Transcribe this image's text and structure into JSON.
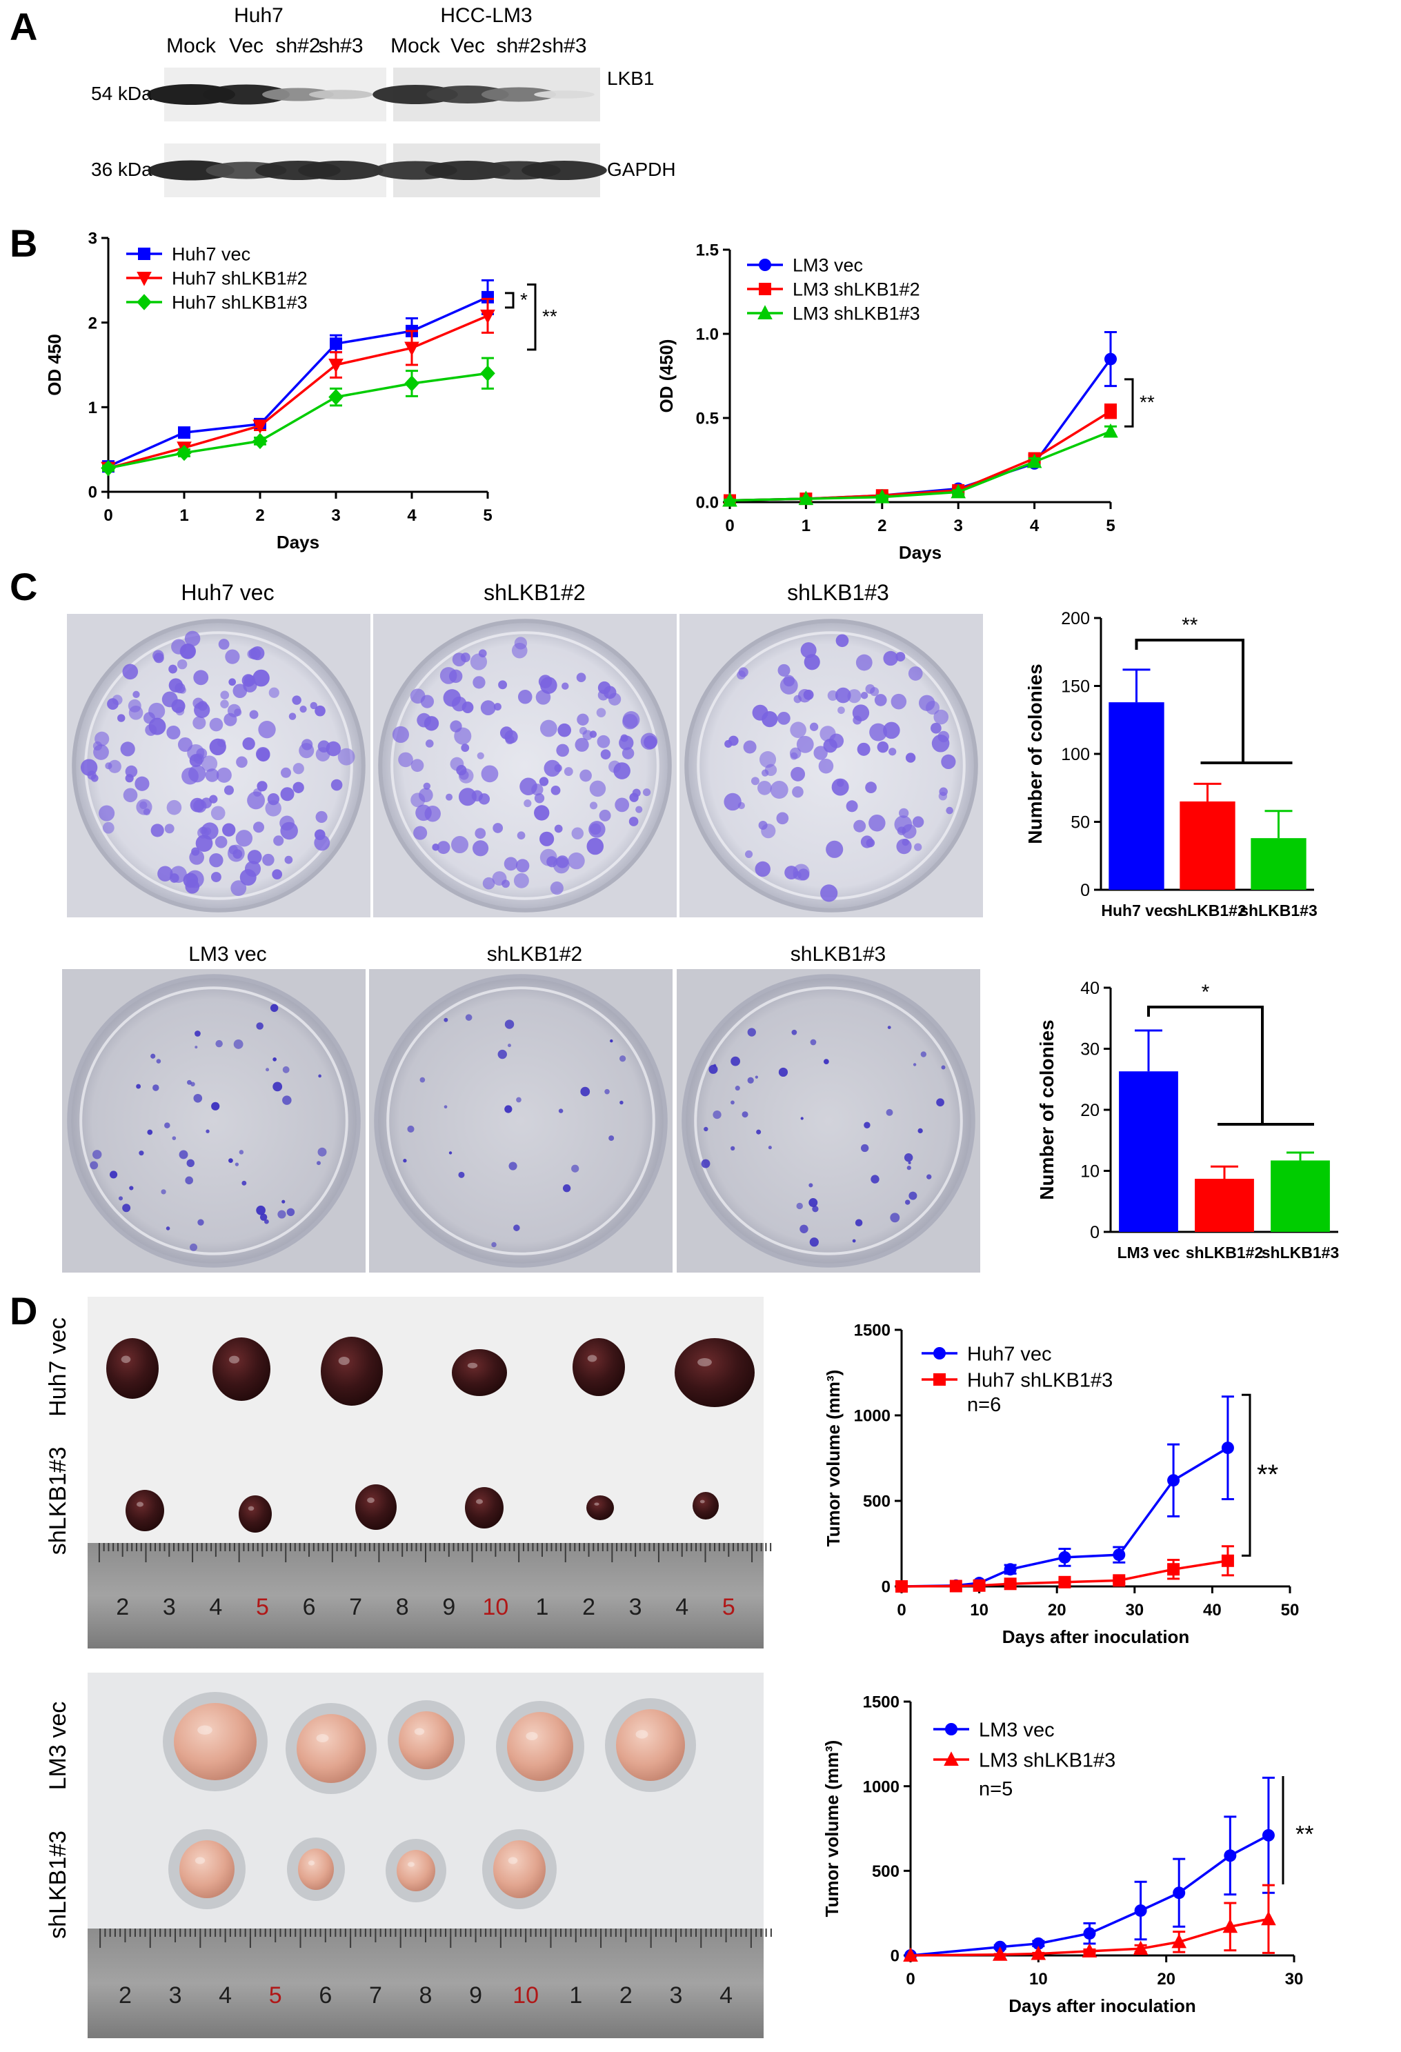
{
  "panels": {
    "a": {
      "letter": "A",
      "group1": "Huh7",
      "group2": "HCC-LM3",
      "lanes": [
        "Mock",
        "Vec",
        "sh#2",
        "sh#3",
        "Mock",
        "Vec",
        "sh#2",
        "sh#3"
      ],
      "markers": [
        {
          "size": "54 kDa",
          "protein": "LKB1",
          "intensity": [
            1.0,
            0.95,
            0.45,
            0.18,
            0.9,
            0.8,
            0.55,
            0.08
          ]
        },
        {
          "size": "36 kDa",
          "protein": "GAPDH",
          "intensity": [
            0.95,
            0.75,
            0.9,
            0.9,
            0.85,
            0.9,
            0.85,
            0.9
          ]
        }
      ]
    },
    "b": {
      "letter": "B"
    },
    "c": {
      "letter": "C",
      "row1_titles": [
        "Huh7 vec",
        "shLKB1#2",
        "shLKB1#3"
      ],
      "row2_titles": [
        "LM3 vec",
        "shLKB1#2",
        "shLKB1#3"
      ]
    },
    "d": {
      "letter": "D",
      "photo1_labels": [
        "Huh7 vec",
        "shLKB1#3"
      ],
      "photo2_labels": [
        "LM3 vec",
        "shLKB1#3"
      ],
      "ruler_numbers": [
        "2",
        "3",
        "4",
        "5",
        "6",
        "7",
        "8",
        "9",
        "10",
        "1",
        "2",
        "3",
        "4",
        "5"
      ],
      "ruler_numbers2": [
        "2",
        "3",
        "4",
        "5",
        "6",
        "7",
        "8",
        "9",
        "10",
        "1",
        "2",
        "3",
        "4"
      ]
    }
  },
  "chart_data": [
    {
      "id": "b-left",
      "type": "line",
      "xlabel": "Days",
      "ylabel": "OD 450",
      "xlim": [
        0,
        5
      ],
      "ylim": [
        0,
        3
      ],
      "xticks": [
        0,
        1,
        2,
        3,
        4,
        5
      ],
      "yticks": [
        0,
        1,
        2,
        3
      ],
      "x": [
        0,
        1,
        2,
        3,
        4,
        5
      ],
      "series": [
        {
          "name": "Huh7 vec",
          "color": "#0000ff",
          "marker": "square",
          "values": [
            0.3,
            0.7,
            0.8,
            1.75,
            1.9,
            2.3
          ],
          "err": [
            0.03,
            0.05,
            0.05,
            0.1,
            0.15,
            0.2
          ]
        },
        {
          "name": "Huh7 shLKB1#2",
          "color": "#ff0000",
          "marker": "triangle-down",
          "values": [
            0.28,
            0.52,
            0.78,
            1.5,
            1.7,
            2.08
          ],
          "err": [
            0.03,
            0.05,
            0.05,
            0.15,
            0.2,
            0.2
          ]
        },
        {
          "name": "Huh7 shLKB1#3",
          "color": "#00cc00",
          "marker": "diamond",
          "values": [
            0.28,
            0.46,
            0.6,
            1.12,
            1.28,
            1.4
          ],
          "err": [
            0.03,
            0.04,
            0.04,
            0.1,
            0.15,
            0.18
          ]
        }
      ],
      "annotations": [
        {
          "text": "*",
          "between": [
            "Huh7 vec",
            "Huh7 shLKB1#2"
          ],
          "at_x": 5
        },
        {
          "text": "**",
          "between": [
            "Huh7 vec",
            "Huh7 shLKB1#3"
          ],
          "at_x": 5
        }
      ]
    },
    {
      "id": "b-right",
      "type": "line",
      "xlabel": "Days",
      "ylabel": "OD (450)",
      "xlim": [
        0,
        5
      ],
      "ylim": [
        0,
        1.5
      ],
      "xticks": [
        0,
        1,
        2,
        3,
        4,
        5
      ],
      "yticks": [
        0.0,
        0.5,
        1.0,
        1.5
      ],
      "ytick_labels": [
        "0.0",
        "0.5",
        "1.0",
        "1.5"
      ],
      "x": [
        0,
        1,
        2,
        3,
        4,
        5
      ],
      "series": [
        {
          "name": "LM3 vec",
          "color": "#0000ff",
          "marker": "circle",
          "values": [
            0.01,
            0.02,
            0.04,
            0.08,
            0.23,
            0.85
          ],
          "err": [
            0.005,
            0.005,
            0.01,
            0.01,
            0.02,
            0.16
          ]
        },
        {
          "name": "LM3 shLKB1#2",
          "color": "#ff0000",
          "marker": "square",
          "values": [
            0.01,
            0.02,
            0.04,
            0.07,
            0.26,
            0.54
          ],
          "err": [
            0.005,
            0.005,
            0.01,
            0.01,
            0.02,
            0.04
          ]
        },
        {
          "name": "LM3 shLKB1#3",
          "color": "#00cc00",
          "marker": "triangle",
          "values": [
            0.01,
            0.02,
            0.03,
            0.06,
            0.24,
            0.42
          ],
          "err": [
            0.005,
            0.005,
            0.01,
            0.01,
            0.02,
            0.03
          ]
        }
      ],
      "annotations": [
        {
          "text": "**",
          "between": [
            "LM3 vec",
            "LM3 shLKB1#3"
          ],
          "at_x": 5
        }
      ]
    },
    {
      "id": "c-top",
      "type": "bar",
      "categories": [
        "Huh7 vec",
        "shLKB1#2",
        "shLKB1#3"
      ],
      "colors": [
        "#0000ff",
        "#ff0000",
        "#00cc00"
      ],
      "values": [
        138,
        65,
        38
      ],
      "err": [
        24,
        13,
        20
      ],
      "ylabel": "Number of colonies",
      "ylim": [
        0,
        200
      ],
      "yticks": [
        0,
        50,
        100,
        150,
        200
      ],
      "annotations": [
        {
          "text": "**"
        }
      ]
    },
    {
      "id": "c-bottom",
      "type": "bar",
      "categories": [
        "LM3 vec",
        "shLKB1#2",
        "shLKB1#3"
      ],
      "colors": [
        "#0000ff",
        "#ff0000",
        "#00cc00"
      ],
      "values": [
        26.3,
        8.7,
        11.7
      ],
      "err": [
        6.7,
        2,
        1.3
      ],
      "ylabel": "Number of colonies",
      "ylim": [
        0,
        40
      ],
      "yticks": [
        0,
        10,
        20,
        30,
        40
      ],
      "annotations": [
        {
          "text": "*"
        }
      ]
    },
    {
      "id": "d-top",
      "type": "line",
      "xlabel": "Days after inoculation",
      "ylabel": "Tumor volume (mm³)",
      "xlim": [
        0,
        50
      ],
      "ylim": [
        0,
        1500
      ],
      "xticks": [
        0,
        10,
        20,
        30,
        40,
        50
      ],
      "yticks": [
        0,
        500,
        1000,
        1500
      ],
      "x": [
        0,
        7,
        10,
        14,
        21,
        28,
        35,
        42
      ],
      "n_label": "n=6",
      "series": [
        {
          "name": "Huh7 vec",
          "color": "#0000ff",
          "marker": "circle",
          "values": [
            0,
            5,
            20,
            100,
            170,
            185,
            620,
            810
          ],
          "err": [
            0,
            4,
            10,
            25,
            50,
            45,
            210,
            300
          ]
        },
        {
          "name": "Huh7 shLKB1#3",
          "color": "#ff0000",
          "marker": "square",
          "values": [
            0,
            2,
            5,
            15,
            25,
            35,
            100,
            150
          ],
          "err": [
            0,
            2,
            3,
            8,
            12,
            15,
            55,
            85
          ]
        }
      ],
      "annotations": [
        {
          "text": "**"
        }
      ]
    },
    {
      "id": "d-bottom",
      "type": "line",
      "xlabel": "Days after inoculation",
      "ylabel": "Tumor volume (mm³)",
      "xlim": [
        0,
        30
      ],
      "ylim": [
        0,
        1500
      ],
      "xticks": [
        0,
        10,
        20,
        30
      ],
      "yticks": [
        0,
        500,
        1000,
        1500
      ],
      "x": [
        0,
        7,
        10,
        14,
        18,
        21,
        25,
        28
      ],
      "n_label": "n=5",
      "series": [
        {
          "name": "LM3 vec",
          "color": "#0000ff",
          "marker": "circle",
          "values": [
            0,
            50,
            70,
            130,
            265,
            370,
            590,
            710
          ],
          "err": [
            0,
            10,
            15,
            60,
            170,
            200,
            230,
            340
          ]
        },
        {
          "name": "LM3 shLKB1#3",
          "color": "#ff0000",
          "marker": "triangle",
          "values": [
            0,
            5,
            10,
            25,
            40,
            80,
            170,
            215
          ],
          "err": [
            0,
            3,
            5,
            10,
            20,
            60,
            140,
            200
          ]
        }
      ],
      "annotations": [
        {
          "text": "**"
        }
      ]
    }
  ]
}
